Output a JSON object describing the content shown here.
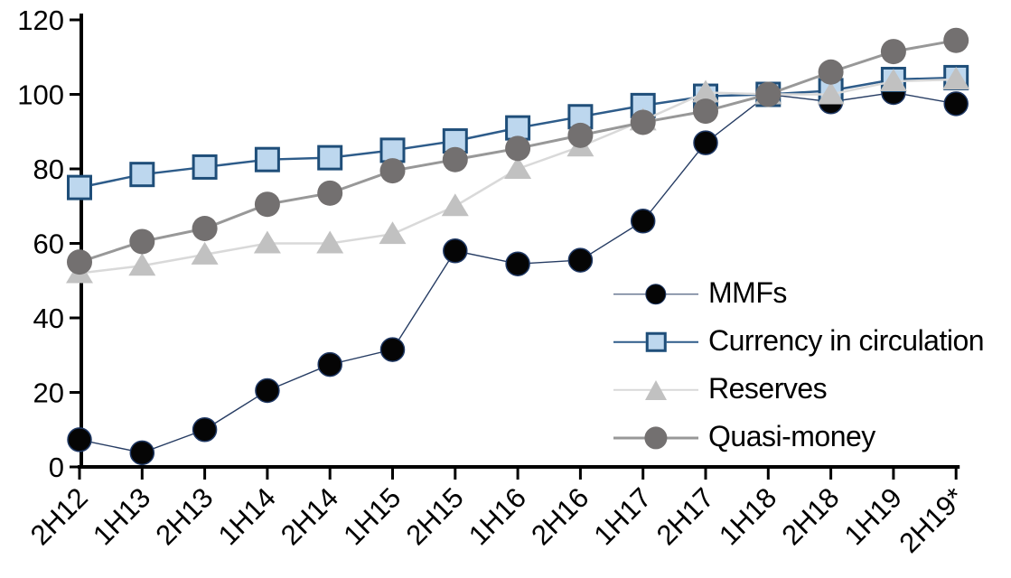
{
  "chart_data": {
    "type": "line",
    "title": "",
    "xlabel": "",
    "ylabel": "",
    "categories": [
      "2H12",
      "1H13",
      "2H13",
      "1H14",
      "2H14",
      "1H15",
      "2H15",
      "1H16",
      "2H16",
      "1H17",
      "2H17",
      "1H18",
      "2H18",
      "1H19",
      "2H19*"
    ],
    "series": [
      {
        "name": "MMFs",
        "marker": "circle",
        "marker_size": 13,
        "marker_fill": "#050505",
        "marker_stroke": "#1f3864",
        "marker_stroke_width": 1.5,
        "line_color": "#263c63",
        "line_width": 1.4,
        "values": [
          7.3,
          3.8,
          10,
          20.5,
          27.5,
          31.5,
          58,
          54.5,
          55.5,
          66,
          87,
          100,
          98,
          100.5,
          97.5
        ]
      },
      {
        "name": "Currency in circulation",
        "marker": "square",
        "marker_size": 12.5,
        "marker_fill": "#bdd7ee",
        "marker_stroke": "#1f4e79",
        "marker_stroke_width": 3,
        "line_color": "#2e5c8a",
        "line_width": 2.5,
        "values": [
          75,
          78.5,
          80.5,
          82.5,
          83,
          85,
          87.5,
          91,
          94,
          97,
          99.5,
          100,
          101,
          104,
          104.5
        ]
      },
      {
        "name": "Reserves",
        "marker": "triangle",
        "marker_size": 15,
        "marker_fill": "#c1c1c1",
        "marker_stroke": "none",
        "marker_stroke_width": 0,
        "line_color": "#d9d9d9",
        "line_width": 2.5,
        "values": [
          52,
          54,
          57,
          60,
          60,
          62.5,
          70,
          80,
          86,
          93,
          100.5,
          100,
          100,
          103.5,
          104
        ]
      },
      {
        "name": "Quasi-money",
        "marker": "circle",
        "marker_size": 14,
        "marker_fill": "#737070",
        "marker_stroke": "none",
        "marker_stroke_width": 0,
        "line_color": "#989898",
        "line_width": 3,
        "values": [
          55,
          60.5,
          64,
          70.5,
          73.5,
          79.5,
          82.5,
          85.5,
          89,
          92.5,
          95.5,
          100,
          106,
          111.5,
          114.5
        ]
      }
    ],
    "ylim": [
      0,
      120
    ],
    "yticks": [
      0,
      20,
      40,
      60,
      80,
      100,
      120
    ],
    "ytick_labels": [
      "0",
      "20",
      "40",
      "60",
      "80",
      "100",
      "120"
    ],
    "grid": false,
    "legend_position": "inside-right",
    "axis_color": "#000000"
  }
}
